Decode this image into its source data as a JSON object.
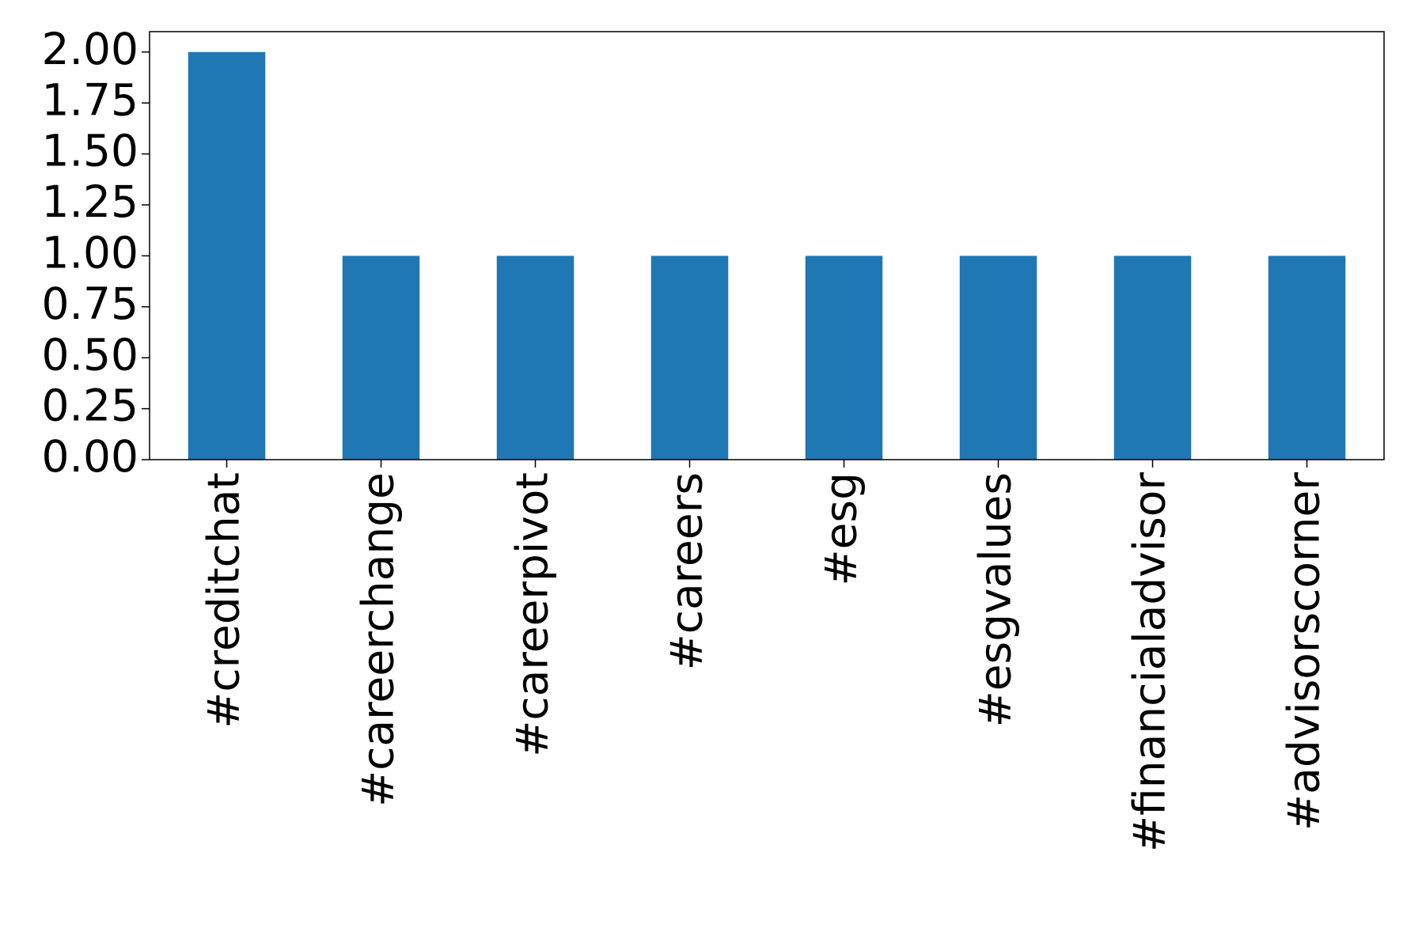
{
  "chart_data": {
    "type": "bar",
    "categories": [
      "#creditchat",
      "#careerchange",
      "#careerpivot",
      "#careers",
      "#esg",
      "#esgvalues",
      "#financialadvisor",
      "#advisorscorner"
    ],
    "values": [
      2,
      1,
      1,
      1,
      1,
      1,
      1,
      1
    ],
    "color": "#1f77b4",
    "ylim": [
      0,
      2.1
    ],
    "yticks": [
      {
        "value": 0,
        "label": "0.00"
      },
      {
        "value": 0.25,
        "label": "0.25"
      },
      {
        "value": 0.5,
        "label": "0.50"
      },
      {
        "value": 0.75,
        "label": "0.75"
      },
      {
        "value": 1,
        "label": "1.00"
      },
      {
        "value": 1.25,
        "label": "1.25"
      },
      {
        "value": 1.5,
        "label": "1.50"
      },
      {
        "value": 1.75,
        "label": "1.75"
      },
      {
        "value": 2,
        "label": "2.00"
      }
    ],
    "grid": false
  }
}
